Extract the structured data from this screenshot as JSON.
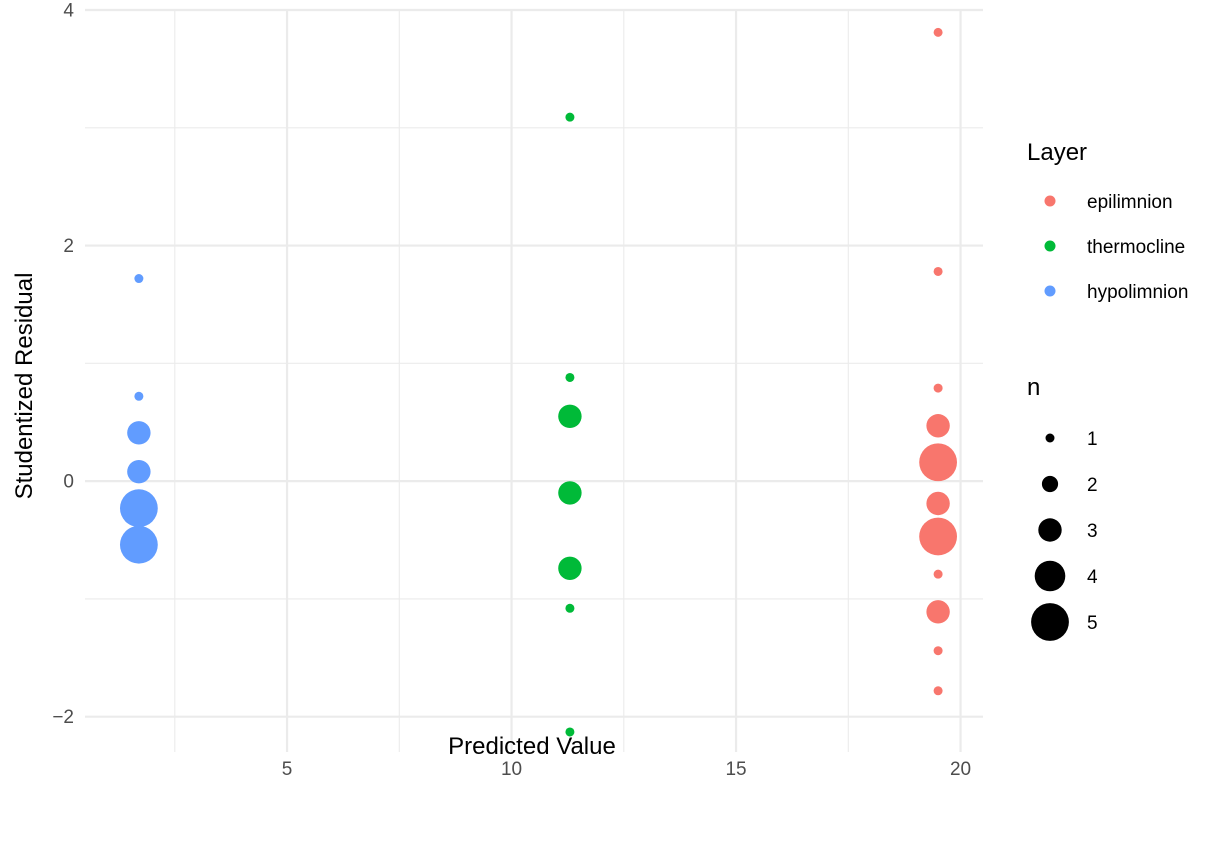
{
  "chart_data": {
    "type": "scatter",
    "title": "",
    "xlabel": "Predicted Value",
    "ylabel": "Studentized Residual",
    "xlim": [
      0.5,
      20.5
    ],
    "ylim": [
      -2.3,
      4.0
    ],
    "x_ticks": [
      5,
      10,
      15,
      20
    ],
    "x_minor_ticks": [
      2.5,
      7.5,
      12.5,
      17.5
    ],
    "y_ticks": [
      -2,
      0,
      2,
      4
    ],
    "y_minor_ticks": [
      -1,
      1,
      3
    ],
    "x_tick_labels": [
      "5",
      "10",
      "15",
      "20"
    ],
    "y_tick_labels": [
      "−2",
      "0",
      "2",
      "4"
    ],
    "grid": true,
    "legend_placement": "right",
    "color_legend": {
      "title": "Layer",
      "entries": [
        {
          "label": "epilimnion",
          "color": "#F8766D"
        },
        {
          "label": "thermocline",
          "color": "#00BA38"
        },
        {
          "label": "hypolimnion",
          "color": "#619CFF"
        }
      ]
    },
    "size_legend": {
      "title": "n",
      "entries": [
        {
          "label": "1",
          "value": 1
        },
        {
          "label": "2",
          "value": 2
        },
        {
          "label": "3",
          "value": 3
        },
        {
          "label": "4",
          "value": 4
        },
        {
          "label": "5",
          "value": 5
        }
      ]
    },
    "series": [
      {
        "name": "epilimnion",
        "color": "#F8766D",
        "points": [
          {
            "x": 19.5,
            "y": 3.81,
            "n": 1
          },
          {
            "x": 19.5,
            "y": 1.78,
            "n": 1
          },
          {
            "x": 19.5,
            "y": 0.79,
            "n": 1
          },
          {
            "x": 19.5,
            "y": 0.47,
            "n": 3
          },
          {
            "x": 19.5,
            "y": 0.16,
            "n": 5
          },
          {
            "x": 19.5,
            "y": -0.19,
            "n": 3
          },
          {
            "x": 19.5,
            "y": -0.47,
            "n": 5
          },
          {
            "x": 19.5,
            "y": -0.79,
            "n": 1
          },
          {
            "x": 19.5,
            "y": -1.11,
            "n": 3
          },
          {
            "x": 19.5,
            "y": -1.44,
            "n": 1
          },
          {
            "x": 19.5,
            "y": -1.78,
            "n": 1
          }
        ]
      },
      {
        "name": "thermocline",
        "color": "#00BA38",
        "points": [
          {
            "x": 11.3,
            "y": 3.09,
            "n": 1
          },
          {
            "x": 11.3,
            "y": 0.88,
            "n": 1
          },
          {
            "x": 11.3,
            "y": 0.55,
            "n": 3
          },
          {
            "x": 11.3,
            "y": -0.1,
            "n": 3
          },
          {
            "x": 11.3,
            "y": -0.74,
            "n": 3
          },
          {
            "x": 11.3,
            "y": -1.08,
            "n": 1
          },
          {
            "x": 11.3,
            "y": -2.13,
            "n": 1
          }
        ]
      },
      {
        "name": "hypolimnion",
        "color": "#619CFF",
        "points": [
          {
            "x": 1.7,
            "y": 1.72,
            "n": 1
          },
          {
            "x": 1.7,
            "y": 0.72,
            "n": 1
          },
          {
            "x": 1.7,
            "y": 0.41,
            "n": 3
          },
          {
            "x": 1.7,
            "y": 0.08,
            "n": 3
          },
          {
            "x": 1.7,
            "y": -0.23,
            "n": 5
          },
          {
            "x": 1.7,
            "y": -0.54,
            "n": 5
          }
        ]
      }
    ]
  }
}
